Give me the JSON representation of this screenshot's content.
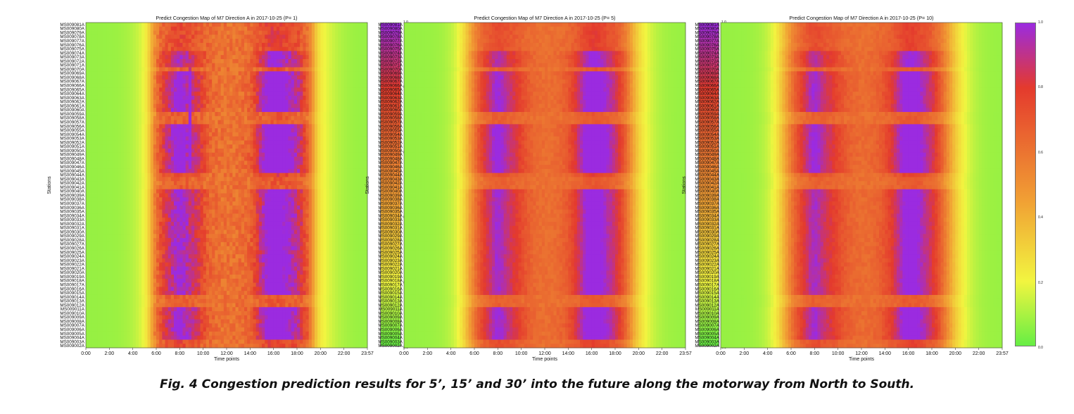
{
  "caption": "Fig. 4 Congestion prediction results for 5’, 15’ and 30’ into the future along the motorway from North to South.",
  "colors": {
    "low": "#66ee44",
    "yellow": "#f2f540",
    "orange": "#f1a034",
    "red": "#e43a2d",
    "high": "#9b2be0"
  },
  "chart_data": [
    {
      "type": "heatmap",
      "title": "Predict Congestion Map of M7 Direction A in 2017-10-25 (P= 1)",
      "xlabel": "Time points",
      "ylabel": "Stations",
      "x_ticks": [
        "0:00",
        "2:00",
        "4:00",
        "6:00",
        "8:00",
        "10:00",
        "12:00",
        "14:00",
        "16:00",
        "18:00",
        "20:00",
        "22:00",
        "23:57"
      ],
      "y_ticks": [
        "MS009081A",
        "MS009080A",
        "MS009079A",
        "MS009078A",
        "MS009077A",
        "MS009076A",
        "MS009075A",
        "MS009074A",
        "MS009073A",
        "MS009072A",
        "MS009071A",
        "MS009070A",
        "MS009069A",
        "MS009068A",
        "MS009067A",
        "MS009066A",
        "MS009065A",
        "MS009064A",
        "MS009063A",
        "MS009062A",
        "MS009061A",
        "MS009060A",
        "MS009059A",
        "MS009058A",
        "MS009057A",
        "MS009056A",
        "MS009055A",
        "MS009054A",
        "MS009053A",
        "MS009052A",
        "MS009051A",
        "MS009050A",
        "MS009049A",
        "MS009048A",
        "MS009047A",
        "MS009046A",
        "MS009045A",
        "MS009044A",
        "MS009043A",
        "MS009042A",
        "MS009041A",
        "MS009040A",
        "MS009039A",
        "MS009038A",
        "MS009037A",
        "MS009036A",
        "MS009035A",
        "MS009034A",
        "MS009033A",
        "MS009032A",
        "MS009031A",
        "MS009030A",
        "MS009029A",
        "MS009028A",
        "MS009027A",
        "MS009026A",
        "MS009025A",
        "MS009024A",
        "MS009023A",
        "MS009022A",
        "MS009021A",
        "MS009020A",
        "MS009019A",
        "MS009018A",
        "MS009017A",
        "MS009016A",
        "MS009015A",
        "MS009014A",
        "MS009013A",
        "MS009012A",
        "MS009011A",
        "MS009010A",
        "MS009009A",
        "MS009008A",
        "MS009007A",
        "MS009006A",
        "MS009005A",
        "MS009004A",
        "MS009003A",
        "MS009002A"
      ],
      "colorbar_ticks": [
        "0.0",
        "0.2",
        "0.4",
        "0.6",
        "0.8",
        "1.0"
      ],
      "value_range": [
        0,
        1
      ]
    },
    {
      "type": "heatmap",
      "title": "Predict Congestion Map of M7 Direction A in 2017-10-25 (P= 5)",
      "xlabel": "Time points",
      "ylabel": "Stations",
      "x_ticks": [
        "0:00",
        "2:00",
        "4:00",
        "6:00",
        "8:00",
        "10:00",
        "12:00",
        "14:00",
        "16:00",
        "18:00",
        "20:00",
        "22:00",
        "23:57"
      ],
      "y_ticks": [
        "MS009081A",
        "MS009080A",
        "MS009079A",
        "MS009078A",
        "MS009077A",
        "MS009076A",
        "MS009075A",
        "MS009074A",
        "MS009073A",
        "MS009072A",
        "MS009071A",
        "MS009070A",
        "MS009069A",
        "MS009068A",
        "MS009067A",
        "MS009066A",
        "MS009065A",
        "MS009064A",
        "MS009063A",
        "MS009062A",
        "MS009061A",
        "MS009060A",
        "MS009059A",
        "MS009058A",
        "MS009057A",
        "MS009056A",
        "MS009055A",
        "MS009054A",
        "MS009053A",
        "MS009052A",
        "MS009051A",
        "MS009050A",
        "MS009049A",
        "MS009048A",
        "MS009047A",
        "MS009046A",
        "MS009045A",
        "MS009044A",
        "MS009043A",
        "MS009042A",
        "MS009041A",
        "MS009040A",
        "MS009039A",
        "MS009038A",
        "MS009037A",
        "MS009036A",
        "MS009035A",
        "MS009034A",
        "MS009033A",
        "MS009032A",
        "MS009031A",
        "MS009030A",
        "MS009029A",
        "MS009028A",
        "MS009027A",
        "MS009026A",
        "MS009025A",
        "MS009024A",
        "MS009023A",
        "MS009022A",
        "MS009021A",
        "MS009020A",
        "MS009019A",
        "MS009018A",
        "MS009017A",
        "MS009016A",
        "MS009015A",
        "MS009014A",
        "MS009013A",
        "MS009012A",
        "MS009011A",
        "MS009010A",
        "MS009009A",
        "MS009008A",
        "MS009007A",
        "MS009006A",
        "MS009005A",
        "MS009004A",
        "MS009003A",
        "MS009002A"
      ],
      "colorbar_ticks": [
        "0.0",
        "0.2",
        "0.4",
        "0.6",
        "0.8",
        "1.0"
      ],
      "value_range": [
        0,
        1
      ]
    },
    {
      "type": "heatmap",
      "title": "Predict Congestion Map of M7 Direction A in 2017-10-25 (P= 10)",
      "xlabel": "Time points",
      "ylabel": "Stations",
      "x_ticks": [
        "0:00",
        "2:00",
        "4:00",
        "6:00",
        "8:00",
        "10:00",
        "12:00",
        "14:00",
        "16:00",
        "18:00",
        "20:00",
        "22:00",
        "23:57"
      ],
      "y_ticks": [
        "MS009081A",
        "MS009080A",
        "MS009079A",
        "MS009078A",
        "MS009077A",
        "MS009076A",
        "MS009075A",
        "MS009074A",
        "MS009073A",
        "MS009072A",
        "MS009071A",
        "MS009070A",
        "MS009069A",
        "MS009068A",
        "MS009067A",
        "MS009066A",
        "MS009065A",
        "MS009064A",
        "MS009063A",
        "MS009062A",
        "MS009061A",
        "MS009060A",
        "MS009059A",
        "MS009058A",
        "MS009057A",
        "MS009056A",
        "MS009055A",
        "MS009054A",
        "MS009053A",
        "MS009052A",
        "MS009051A",
        "MS009050A",
        "MS009049A",
        "MS009048A",
        "MS009047A",
        "MS009046A",
        "MS009045A",
        "MS009044A",
        "MS009043A",
        "MS009042A",
        "MS009041A",
        "MS009040A",
        "MS009039A",
        "MS009038A",
        "MS009037A",
        "MS009036A",
        "MS009035A",
        "MS009034A",
        "MS009033A",
        "MS009032A",
        "MS009031A",
        "MS009030A",
        "MS009029A",
        "MS009028A",
        "MS009027A",
        "MS009026A",
        "MS009025A",
        "MS009024A",
        "MS009023A",
        "MS009022A",
        "MS009021A",
        "MS009020A",
        "MS009019A",
        "MS009018A",
        "MS009017A",
        "MS009016A",
        "MS009015A",
        "MS009014A",
        "MS009013A",
        "MS009012A",
        "MS009011A",
        "MS009010A",
        "MS009009A",
        "MS009008A",
        "MS009007A",
        "MS009006A",
        "MS009005A",
        "MS009004A",
        "MS009003A",
        "MS009002A"
      ],
      "colorbar_ticks": [
        "0.0",
        "0.2",
        "0.4",
        "0.6",
        "0.8",
        "1.0"
      ],
      "value_range": [
        0,
        1
      ]
    }
  ]
}
